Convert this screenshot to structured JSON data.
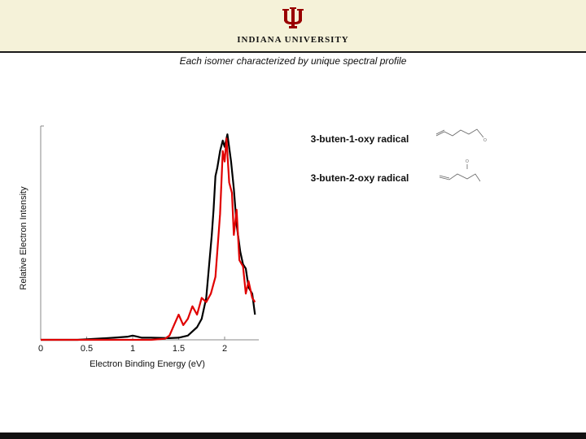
{
  "header": {
    "university": "INDIANA UNIVERSITY",
    "logo_icon": "iu-trident-icon",
    "background_color": "#f5f2d9",
    "logo_color": "#990000"
  },
  "slide": {
    "subtitle": "Each isomer characterized by unique spectral profile"
  },
  "chart_data": {
    "type": "line",
    "title": "",
    "xlabel": "Electron Binding Energy (eV)",
    "ylabel": "Relative Electron Intensity",
    "xlim": [
      0,
      2.4
    ],
    "ylim": [
      0,
      1.0
    ],
    "xticks": [
      0,
      0.5,
      1,
      1.5,
      2
    ],
    "xtick_labels": [
      "0",
      "0.5",
      "1",
      "1.5",
      "2"
    ],
    "grid": false,
    "legend": "right",
    "series": [
      {
        "name": "3-buten-1-oxy radical",
        "color": "#000000",
        "x": [
          0.0,
          0.4,
          0.8,
          0.95,
          1.0,
          1.05,
          1.1,
          1.2,
          1.4,
          1.5,
          1.6,
          1.7,
          1.75,
          1.8,
          1.83,
          1.86,
          1.88,
          1.9,
          1.92,
          1.95,
          1.98,
          2.0,
          2.03,
          2.07,
          2.1,
          2.13,
          2.17,
          2.2,
          2.23,
          2.26,
          2.3,
          2.33
        ],
        "y": [
          0.0,
          0.0,
          0.01,
          0.015,
          0.02,
          0.015,
          0.01,
          0.01,
          0.008,
          0.01,
          0.02,
          0.06,
          0.1,
          0.2,
          0.35,
          0.5,
          0.62,
          0.78,
          0.82,
          0.9,
          0.95,
          0.92,
          0.98,
          0.85,
          0.72,
          0.55,
          0.42,
          0.36,
          0.34,
          0.25,
          0.22,
          0.12
        ]
      },
      {
        "name": "3-buten-2-oxy radical",
        "color": "#e00000",
        "x": [
          0.0,
          0.3,
          0.6,
          0.9,
          1.2,
          1.35,
          1.4,
          1.45,
          1.5,
          1.55,
          1.6,
          1.65,
          1.7,
          1.75,
          1.8,
          1.85,
          1.9,
          1.95,
          1.98,
          2.0,
          2.02,
          2.05,
          2.08,
          2.1,
          2.13,
          2.16,
          2.2,
          2.23,
          2.26,
          2.3,
          2.33
        ],
        "y": [
          0.0,
          0.0,
          0.0,
          0.0,
          0.0,
          0.005,
          0.02,
          0.07,
          0.12,
          0.07,
          0.1,
          0.16,
          0.12,
          0.2,
          0.18,
          0.22,
          0.3,
          0.6,
          0.9,
          0.85,
          0.96,
          0.75,
          0.7,
          0.5,
          0.62,
          0.38,
          0.35,
          0.22,
          0.28,
          0.2,
          0.18
        ]
      }
    ]
  }
}
